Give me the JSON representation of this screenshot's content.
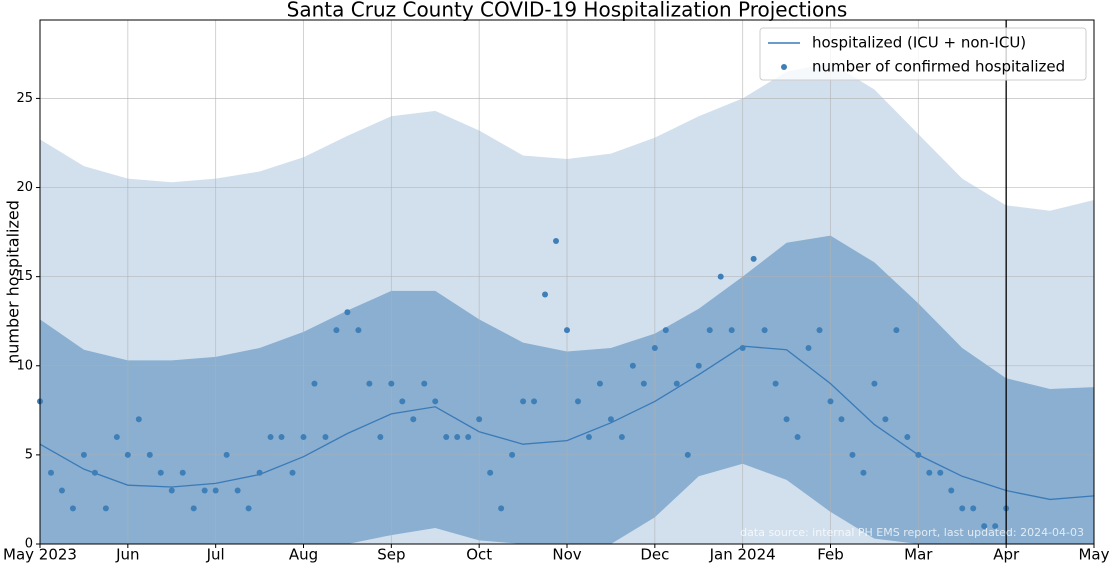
{
  "chart_data": {
    "type": "line",
    "title": "Santa Cruz County COVID-19 Hospitalization Projections",
    "y_label": "number hospitalized",
    "annotation": "data source: internal PH EMS report, last updated: 2024-04-03",
    "xlim": [
      0,
      12
    ],
    "xticks": [
      {
        "value": 0,
        "label": "May 2023"
      },
      {
        "value": 1,
        "label": "Jun"
      },
      {
        "value": 2,
        "label": "Jul"
      },
      {
        "value": 3,
        "label": "Aug"
      },
      {
        "value": 4,
        "label": "Sep"
      },
      {
        "value": 5,
        "label": "Oct"
      },
      {
        "value": 6,
        "label": "Nov"
      },
      {
        "value": 7,
        "label": "Dec"
      },
      {
        "value": 8,
        "label": "Jan 2024"
      },
      {
        "value": 9,
        "label": "Feb"
      },
      {
        "value": 10,
        "label": "Mar"
      },
      {
        "value": 11,
        "label": "Apr"
      },
      {
        "value": 12,
        "label": "May"
      }
    ],
    "ylim": [
      0,
      29.4
    ],
    "yticks": [
      0,
      5,
      10,
      15,
      20,
      25
    ],
    "grid": true,
    "legend": "upper right",
    "vline_x": 11,
    "bands": [
      {
        "color": "#d2e0ee",
        "x": [
          0,
          0.5,
          1,
          1.5,
          2,
          2.5,
          3,
          3.5,
          4,
          4.5,
          5,
          5.5,
          6,
          6.5,
          7,
          7.5,
          8,
          8.5,
          9,
          9.5,
          10,
          10.5,
          11,
          11.5,
          12
        ],
        "upper": [
          22.7,
          21.2,
          20.5,
          20.3,
          20.5,
          20.9,
          21.7,
          22.9,
          24.0,
          24.3,
          23.2,
          21.8,
          21.6,
          21.9,
          22.8,
          24.0,
          25.0,
          26.5,
          27.0,
          25.5,
          23.0,
          20.5,
          19.0,
          18.7,
          19.3
        ],
        "lower": [
          0,
          0,
          0,
          0,
          0,
          0,
          0,
          0,
          0,
          0,
          0,
          0,
          0,
          0,
          0,
          0,
          0,
          0,
          0,
          0,
          0,
          0,
          0,
          0,
          0
        ]
      },
      {
        "color": "#8aafd1",
        "x": [
          0,
          0.5,
          1,
          1.5,
          2,
          2.5,
          3,
          3.5,
          4,
          4.5,
          5,
          5.5,
          6,
          6.5,
          7,
          7.5,
          8,
          8.5,
          9,
          9.5,
          10,
          10.5,
          11,
          11.5,
          12
        ],
        "upper": [
          12.6,
          10.9,
          10.3,
          10.3,
          10.5,
          11.0,
          11.9,
          13.1,
          14.2,
          14.2,
          12.6,
          11.3,
          10.8,
          11.0,
          11.8,
          13.2,
          15.0,
          16.9,
          17.3,
          15.8,
          13.5,
          11.0,
          9.3,
          8.7,
          8.8
        ],
        "lower": [
          0,
          0,
          0,
          0,
          0,
          0,
          0,
          0,
          0.5,
          0.9,
          0.2,
          0,
          0,
          0,
          1.5,
          3.8,
          4.5,
          3.6,
          1.8,
          0.3,
          0,
          0,
          0,
          0,
          0
        ]
      }
    ],
    "series": [
      {
        "name": "hospitalized (ICU + non-ICU)",
        "kind": "line",
        "color": "#3a7ab8",
        "x": [
          0,
          0.5,
          1,
          1.5,
          2,
          2.5,
          3,
          3.5,
          4,
          4.5,
          5,
          5.5,
          6,
          6.5,
          7,
          7.5,
          8,
          8.5,
          9,
          9.5,
          10,
          10.5,
          11,
          11.5,
          12
        ],
        "values": [
          5.6,
          4.2,
          3.3,
          3.2,
          3.4,
          3.9,
          4.9,
          6.2,
          7.3,
          7.7,
          6.3,
          5.6,
          5.8,
          6.8,
          8.0,
          9.5,
          11.1,
          10.9,
          9.0,
          6.7,
          5.0,
          3.8,
          3.0,
          2.5,
          2.7
        ]
      },
      {
        "name": "number of confirmed hospitalized",
        "kind": "scatter",
        "color": "#3f7fb8",
        "x": [
          0,
          0.125,
          0.25,
          0.375,
          0.5,
          0.625,
          0.75,
          0.875,
          1,
          1.125,
          1.25,
          1.375,
          1.5,
          1.625,
          1.75,
          1.875,
          2,
          2.125,
          2.25,
          2.375,
          2.5,
          2.625,
          2.75,
          2.875,
          3,
          3.125,
          3.25,
          3.375,
          3.5,
          3.625,
          3.75,
          3.875,
          4,
          4.125,
          4.25,
          4.375,
          4.5,
          4.625,
          4.75,
          4.875,
          5,
          5.125,
          5.25,
          5.375,
          5.5,
          5.625,
          5.75,
          5.875,
          6,
          6.125,
          6.25,
          6.375,
          6.5,
          6.625,
          6.75,
          6.875,
          7,
          7.125,
          7.25,
          7.375,
          7.5,
          7.625,
          7.75,
          7.875,
          8,
          8.125,
          8.25,
          8.375,
          8.5,
          8.625,
          8.75,
          8.875,
          9,
          9.125,
          9.25,
          9.375,
          9.5,
          9.625,
          9.75,
          9.875,
          10,
          10.125,
          10.25,
          10.375,
          10.5,
          10.625,
          10.75,
          10.875,
          11
        ],
        "values": [
          8,
          4,
          3,
          2,
          5,
          4,
          2,
          6,
          5,
          7,
          5,
          4,
          3,
          4,
          2,
          3,
          3,
          5,
          3,
          2,
          4,
          6,
          6,
          4,
          6,
          9,
          6,
          12,
          13,
          12,
          9,
          6,
          9,
          8,
          7,
          9,
          8,
          6,
          6,
          6,
          7,
          4,
          2,
          5,
          8,
          8,
          14,
          17,
          12,
          8,
          6,
          9,
          7,
          6,
          10,
          9,
          11,
          12,
          9,
          5,
          10,
          12,
          15,
          12,
          11,
          16,
          12,
          9,
          7,
          6,
          11,
          12,
          8,
          7,
          5,
          4,
          9,
          7,
          12,
          6,
          5,
          4,
          4,
          3,
          2,
          2,
          1,
          1,
          2
        ]
      }
    ]
  }
}
